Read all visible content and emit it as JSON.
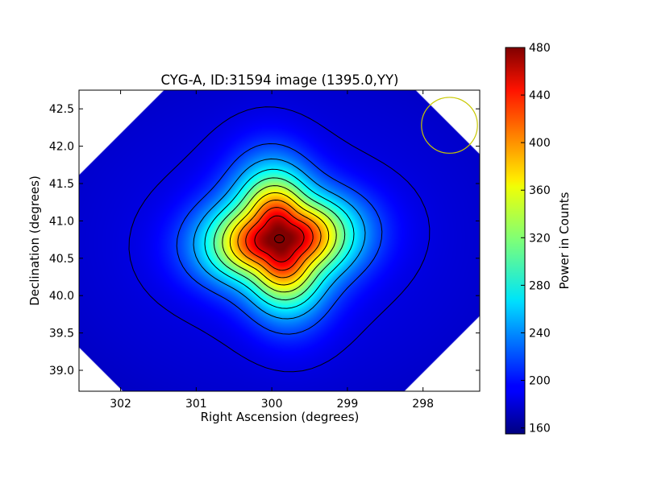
{
  "chart_data": {
    "type": "heatmap",
    "title": "CYG-A, ID:31594 image (1395.0,YY)",
    "xlabel": "Right Ascension (degrees)",
    "ylabel": "Declination (degrees)",
    "xlim": [
      302.55,
      297.25
    ],
    "ylim": [
      38.72,
      42.75
    ],
    "xticks": [
      302,
      301,
      300,
      299,
      298
    ],
    "xtick_labels": [
      "302",
      "301",
      "300",
      "299",
      "298"
    ],
    "yticks": [
      39.0,
      39.5,
      40.0,
      40.5,
      41.0,
      41.5,
      42.0,
      42.5
    ],
    "ytick_labels": [
      "39.0",
      "39.5",
      "40.0",
      "40.5",
      "41.0",
      "41.5",
      "42.0",
      "42.5"
    ],
    "colorbar": {
      "label": "Power in Counts",
      "range": [
        155,
        480
      ],
      "ticks": [
        160,
        200,
        240,
        280,
        320,
        360,
        400,
        440,
        480
      ],
      "tick_labels": [
        "160",
        "200",
        "240",
        "280",
        "320",
        "360",
        "400",
        "440",
        "480"
      ],
      "colormap": "jet"
    },
    "source": {
      "name": "CYG-A",
      "peak_ra": 299.9,
      "peak_dec": 40.76,
      "peak_value": 480,
      "background_value": 180
    },
    "contour_levels": [
      186,
      215,
      245,
      274,
      303,
      333,
      362,
      392,
      421,
      450
    ],
    "beam_circle": {
      "ra": 297.65,
      "dec": 42.28,
      "radius_deg": 0.37,
      "color": "#c8c800"
    },
    "grid": false
  }
}
